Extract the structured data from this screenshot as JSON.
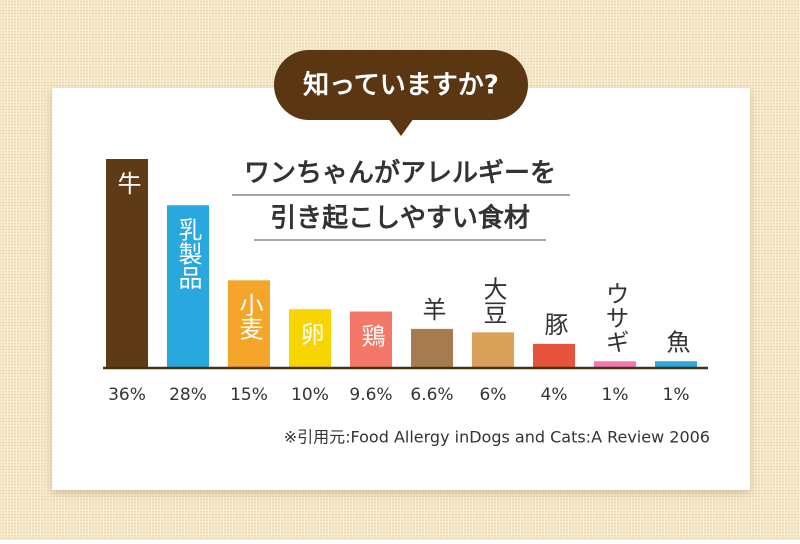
{
  "badge": "知っていますか?",
  "chart_data": {
    "type": "bar",
    "title_lines": [
      "ワンちゃんがアレルギーを",
      "引き起こしやすい食材"
    ],
    "categories": [
      "牛",
      "乳製品",
      "小麦",
      "卵",
      "鶏",
      "羊",
      "大豆",
      "豚",
      "ウサギ",
      "魚"
    ],
    "values": [
      36,
      28,
      15,
      10,
      9.6,
      6.6,
      6,
      4,
      1,
      1
    ],
    "value_labels": [
      "36%",
      "28%",
      "15%",
      "10%",
      "9.6%",
      "6.6%",
      "6%",
      "4%",
      "1%",
      "1%"
    ],
    "colors": [
      "#5e3a17",
      "#29a8e0",
      "#f5a52a",
      "#f8d500",
      "#f47868",
      "#a67b50",
      "#d9a15a",
      "#e8533c",
      "#f07ab0",
      "#2fa7dc"
    ],
    "source": "※引用元:Food Allergy inDogs and Cats:A Review 2006"
  }
}
